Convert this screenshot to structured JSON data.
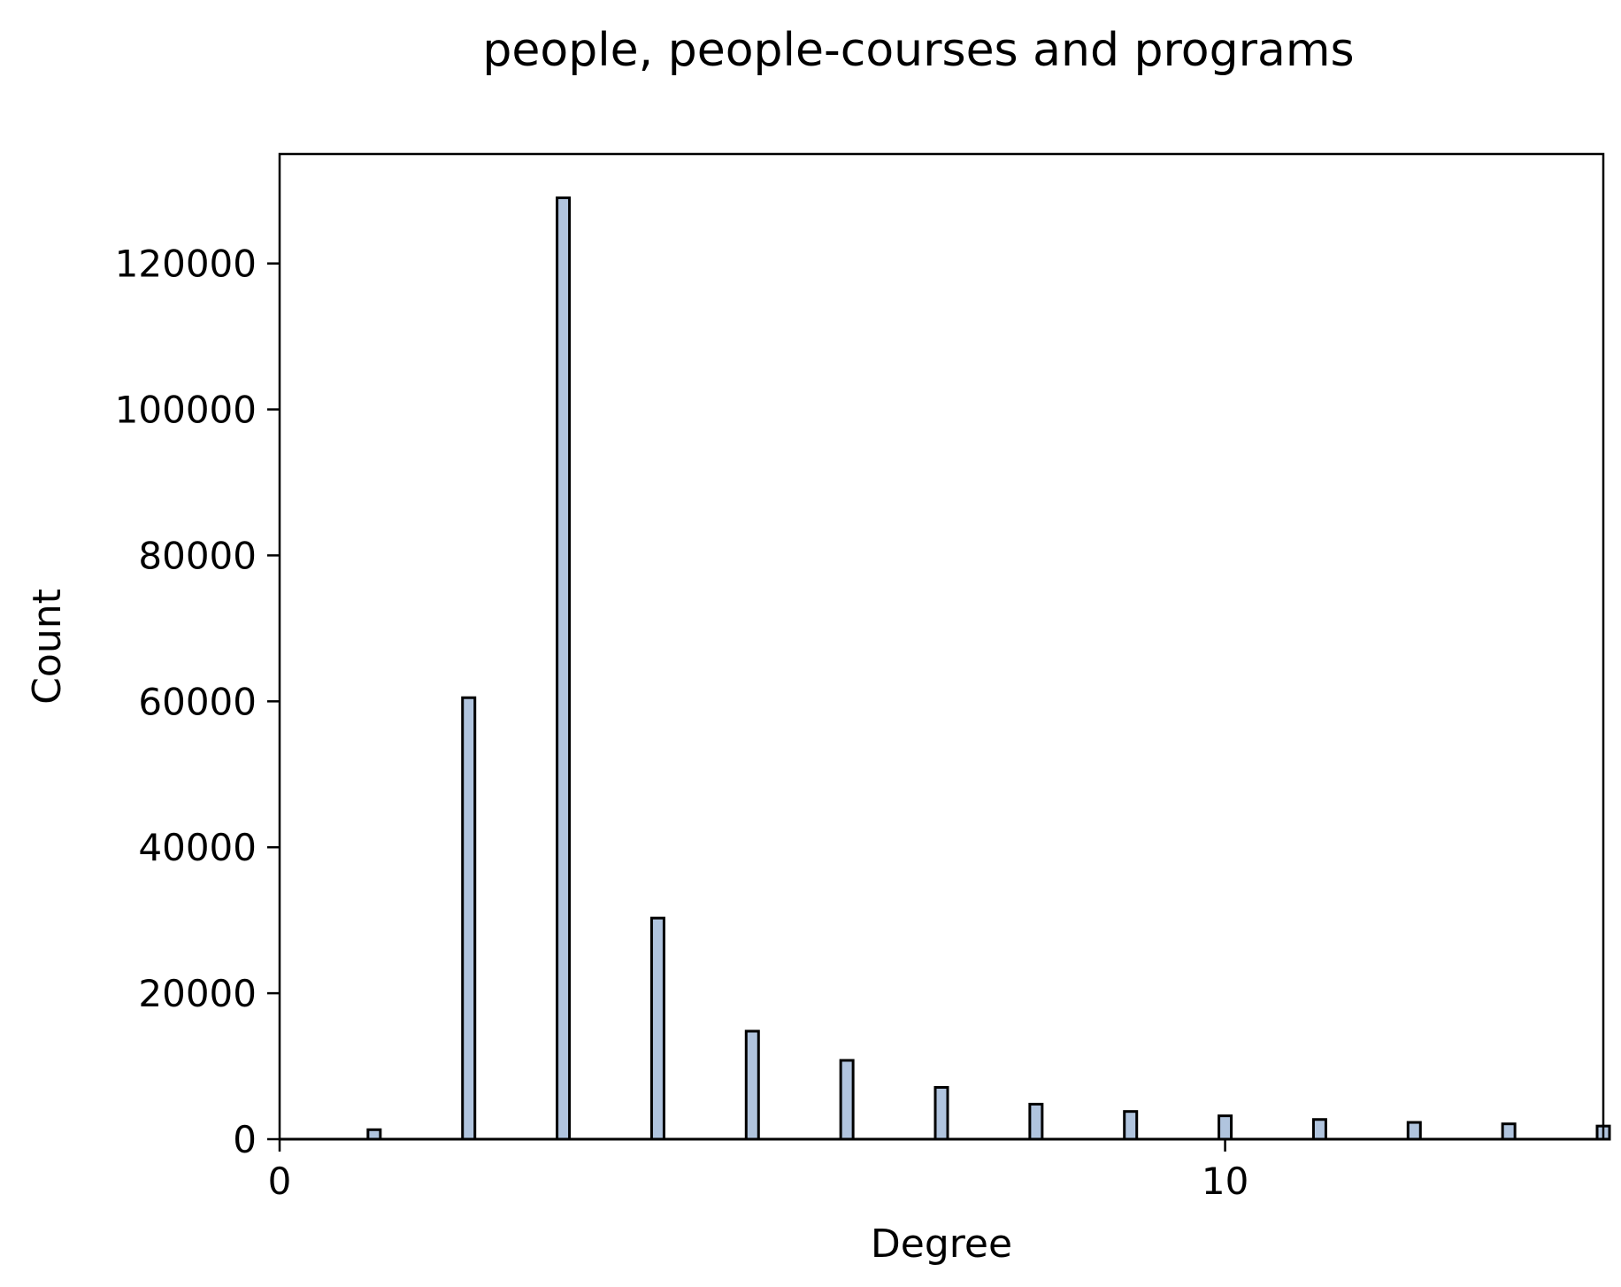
{
  "chart_data": {
    "type": "bar",
    "title": "people, people-courses and programs",
    "xlabel": "Degree",
    "ylabel": "Count",
    "xlim": [
      0,
      14
    ],
    "ylim": [
      0,
      135000
    ],
    "x_ticks": [
      0,
      10
    ],
    "x_tick_labels": [
      "0",
      "10"
    ],
    "y_ticks": [
      0,
      20000,
      40000,
      60000,
      80000,
      100000,
      120000
    ],
    "y_tick_labels": [
      "0",
      "20000",
      "40000",
      "60000",
      "80000",
      "100000",
      "120000"
    ],
    "grid": false,
    "bar_color": "#b0c4de",
    "edge_color": "#000000",
    "bars": [
      {
        "x": 1.0,
        "value": 1300
      },
      {
        "x": 2.0,
        "value": 60500
      },
      {
        "x": 3.0,
        "value": 129000
      },
      {
        "x": 4.0,
        "value": 30300
      },
      {
        "x": 5.0,
        "value": 14800
      },
      {
        "x": 6.0,
        "value": 10800
      },
      {
        "x": 7.0,
        "value": 7100
      },
      {
        "x": 8.0,
        "value": 4800
      },
      {
        "x": 9.0,
        "value": 3800
      },
      {
        "x": 10.0,
        "value": 3200
      },
      {
        "x": 11.0,
        "value": 2700
      },
      {
        "x": 12.0,
        "value": 2300
      },
      {
        "x": 13.0,
        "value": 2100
      },
      {
        "x": 14.0,
        "value": 1800
      }
    ]
  }
}
